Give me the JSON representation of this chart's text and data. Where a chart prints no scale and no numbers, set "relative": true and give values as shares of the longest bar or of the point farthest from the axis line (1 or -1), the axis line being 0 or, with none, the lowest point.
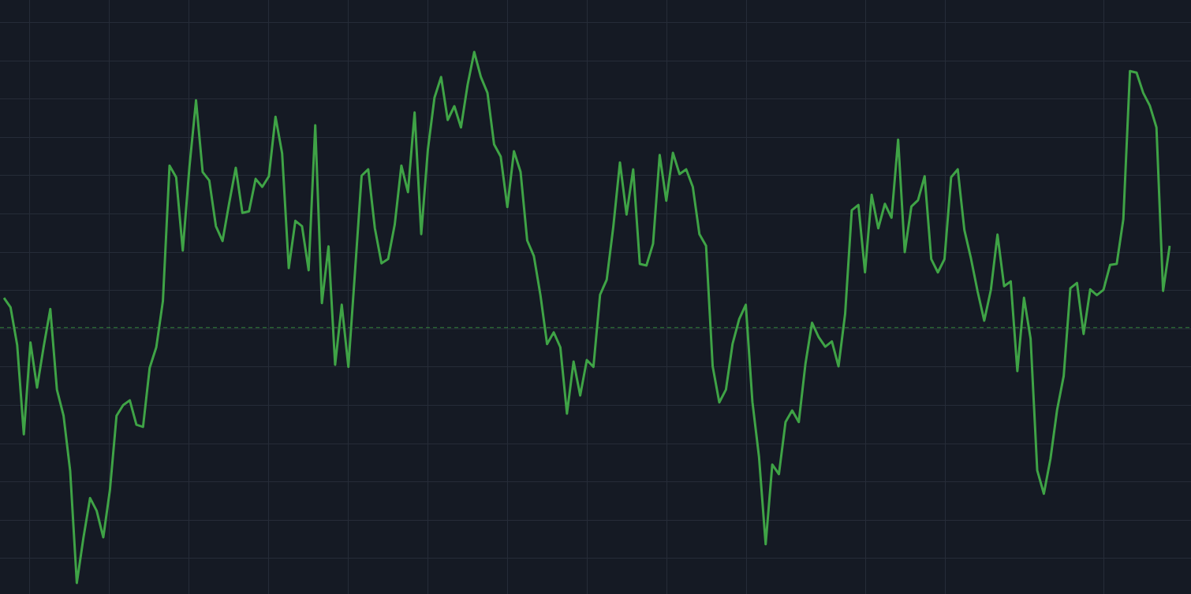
{
  "chart_data": {
    "type": "line",
    "relative": true,
    "grid": true,
    "legend": false,
    "marker": "none",
    "line_style": "solid",
    "categories": [
      null,
      null,
      null,
      null,
      null,
      null,
      null,
      null,
      null,
      null,
      null,
      null,
      null,
      null,
      null,
      null,
      null,
      null,
      null,
      null,
      null,
      null,
      null,
      null,
      null,
      null,
      null,
      null,
      null,
      null,
      null,
      null,
      null,
      null,
      null,
      null,
      null,
      null,
      null,
      null,
      null,
      null,
      null,
      null,
      null,
      null,
      null,
      null,
      null,
      null,
      null,
      null,
      null,
      null,
      null,
      null,
      null,
      null,
      null,
      null,
      null,
      null,
      null,
      null,
      null,
      null,
      null,
      null,
      null,
      null,
      null,
      null,
      null,
      null,
      null,
      null,
      null,
      null,
      null,
      null,
      null,
      null,
      null,
      null,
      null,
      null,
      null,
      null,
      null,
      null,
      null,
      null,
      null,
      null,
      null,
      null,
      null,
      null,
      null,
      null,
      null,
      null,
      null,
      null,
      null,
      null,
      null,
      null,
      null,
      null,
      null,
      null,
      null,
      null,
      null,
      null,
      null,
      null,
      null,
      null,
      null,
      null,
      null,
      null,
      null,
      null,
      null,
      null,
      null,
      null,
      null,
      null,
      null,
      null,
      null,
      null,
      null,
      null,
      null,
      null,
      null,
      null,
      null,
      null,
      null,
      null,
      null,
      null,
      null,
      null,
      null,
      null,
      null,
      null,
      null,
      null,
      null,
      null,
      null,
      null,
      null,
      null,
      null,
      null,
      null,
      null,
      null,
      null,
      null,
      null,
      null,
      null,
      null,
      null,
      null,
      null,
      null
    ],
    "series": [
      {
        "color": "#3fa346",
        "values": [
          0.537,
          0.519,
          0.448,
          0.28,
          0.453,
          0.368,
          0.445,
          0.516,
          0.364,
          0.315,
          0.211,
          0,
          0.085,
          0.16,
          0.136,
          0.086,
          0.175,
          0.315,
          0.335,
          0.344,
          0.298,
          0.294,
          0.405,
          0.444,
          0.531,
          0.786,
          0.764,
          0.626,
          0.783,
          0.909,
          0.774,
          0.758,
          0.672,
          0.644,
          0.715,
          0.782,
          0.697,
          0.7,
          0.761,
          0.746,
          0.766,
          0.878,
          0.809,
          0.593,
          0.682,
          0.672,
          0.589,
          0.862,
          0.527,
          0.634,
          0.411,
          0.524,
          0.407,
          0.586,
          0.767,
          0.779,
          0.668,
          0.602,
          0.61,
          0.675,
          0.786,
          0.736,
          0.886,
          0.657,
          0.816,
          0.914,
          0.953,
          0.872,
          0.898,
          0.858,
          0.938,
          1,
          0.953,
          0.923,
          0.826,
          0.803,
          0.708,
          0.813,
          0.774,
          0.645,
          0.616,
          0.542,
          0.45,
          0.472,
          0.444,
          0.319,
          0.417,
          0.353,
          0.42,
          0.407,
          0.543,
          0.571,
          0.671,
          0.792,
          0.694,
          0.779,
          0.601,
          0.598,
          0.639,
          0.806,
          0.72,
          0.81,
          0.77,
          0.779,
          0.746,
          0.657,
          0.635,
          0.408,
          0.34,
          0.364,
          0.45,
          0.497,
          0.524,
          0.341,
          0.237,
          0.073,
          0.223,
          0.205,
          0.303,
          0.325,
          0.303,
          0.412,
          0.49,
          0.463,
          0.445,
          0.455,
          0.408,
          0.507,
          0.702,
          0.712,
          0.585,
          0.731,
          0.668,
          0.714,
          0.688,
          0.835,
          0.623,
          0.709,
          0.721,
          0.766,
          0.61,
          0.585,
          0.61,
          0.764,
          0.779,
          0.665,
          0.611,
          0.549,
          0.494,
          0.552,
          0.656,
          0.559,
          0.568,
          0.399,
          0.537,
          0.46,
          0.212,
          0.168,
          0.234,
          0.326,
          0.39,
          0.555,
          0.565,
          0.469,
          0.553,
          0.542,
          0.552,
          0.599,
          0.601,
          0.685,
          0.964,
          0.961,
          0.923,
          0.899,
          0.858,
          0.55,
          0.635
        ]
      }
    ],
    "ref_lines": [
      {
        "axis": "y",
        "value": 0.481,
        "color": "#3fa346",
        "line_style": "dashed"
      }
    ]
  }
}
